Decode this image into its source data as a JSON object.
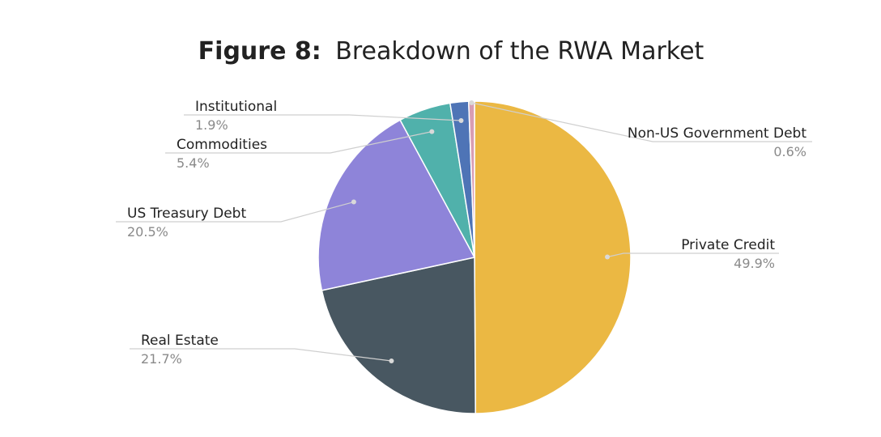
{
  "chart_data": {
    "type": "pie",
    "title_prefix": "Figure 8:",
    "title": "Breakdown of the RWA Market",
    "slices": [
      {
        "label": "Private Credit",
        "value": 49.9,
        "display": "49.9%",
        "color": "#EBB843"
      },
      {
        "label": "Real Estate",
        "value": 21.7,
        "display": "21.7%",
        "color": "#485761"
      },
      {
        "label": "US Treasury Debt",
        "value": 20.5,
        "display": "20.5%",
        "color": "#8E84D9"
      },
      {
        "label": "Commodities",
        "value": 5.4,
        "display": "5.4%",
        "color": "#50B1AB"
      },
      {
        "label": "Institutional",
        "value": 1.9,
        "display": "1.9%",
        "color": "#4E74B6"
      },
      {
        "label": "Non-US Government Debt",
        "value": 0.6,
        "display": "0.6%",
        "color": "#D89DB3"
      }
    ]
  }
}
